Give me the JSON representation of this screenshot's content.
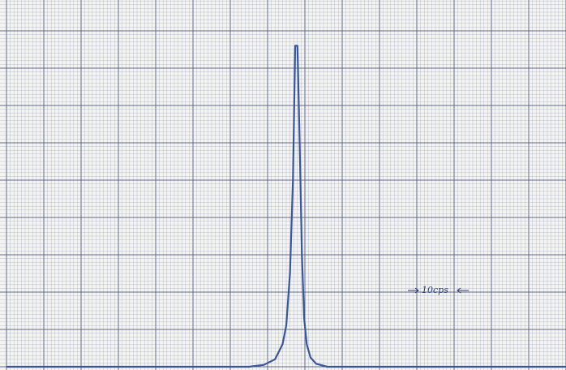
{
  "chart_data": {
    "type": "line",
    "annotation": "10cps",
    "x": [
      0,
      6.5,
      6.9,
      7.2,
      7.4,
      7.5,
      7.6,
      7.68,
      7.74,
      7.8,
      7.86,
      7.92,
      7.98,
      8.05,
      8.15,
      8.3,
      8.6,
      15
    ],
    "series": [
      {
        "color": "#3a55a0",
        "values": [
          0,
          0,
          0.05,
          0.2,
          0.6,
          1.1,
          2.5,
          5.0,
          8.6,
          8.6,
          6.0,
          3.0,
          1.3,
          0.6,
          0.25,
          0.08,
          0,
          0
        ]
      }
    ],
    "xlim": [
      0,
      15
    ],
    "ylim": [
      0,
      9.5
    ]
  }
}
